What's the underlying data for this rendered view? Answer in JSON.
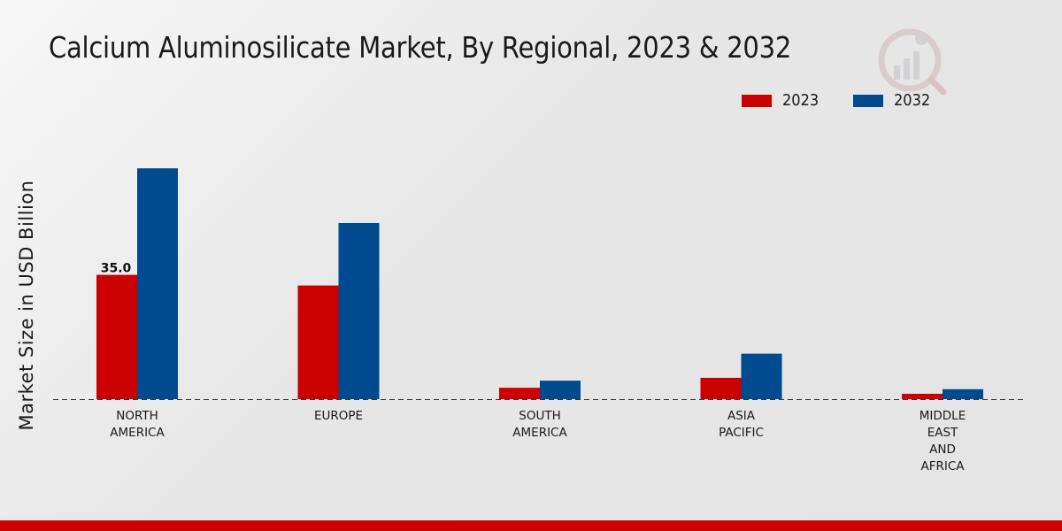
{
  "chart_data": {
    "type": "bar",
    "title": "Calcium Aluminosilicate Market, By Regional, 2023 & 2032",
    "xlabel": "",
    "ylabel": "Market Size in USD Billion",
    "categories": [
      [
        "NORTH",
        "AMERICA"
      ],
      [
        "EUROPE"
      ],
      [
        "SOUTH",
        "AMERICA"
      ],
      [
        "ASIA",
        "PACIFIC"
      ],
      [
        "MIDDLE",
        "EAST",
        "AND",
        "AFRICA"
      ]
    ],
    "series": [
      {
        "name": "2023",
        "color": "#cc0000",
        "values": [
          35.0,
          32.0,
          3.2,
          6.0,
          1.5
        ]
      },
      {
        "name": "2032",
        "color": "#004a8f",
        "values": [
          65.0,
          49.6,
          5.2,
          12.8,
          2.8
        ]
      }
    ],
    "data_labels": [
      {
        "series": 0,
        "index": 0,
        "text": "35.0"
      }
    ],
    "ylim": [
      0,
      80
    ],
    "grid": false,
    "legend_position": "top-right"
  }
}
